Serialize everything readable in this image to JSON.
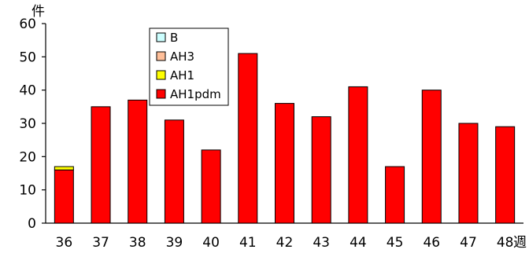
{
  "chart_data": {
    "type": "bar",
    "stacked": true,
    "title": "",
    "xlabel": "",
    "ylabel": "",
    "y_unit": "件",
    "x_unit": "週",
    "categories": [
      "36",
      "37",
      "38",
      "39",
      "40",
      "41",
      "42",
      "43",
      "44",
      "45",
      "46",
      "47",
      "48"
    ],
    "ylim": [
      0,
      60
    ],
    "yticks": [
      0,
      10,
      20,
      30,
      40,
      50,
      60
    ],
    "grid": false,
    "legend_position": "top-center",
    "series": [
      {
        "name": "AH1pdm",
        "color": "#ff0000",
        "values": [
          16,
          35,
          37,
          31,
          22,
          51,
          36,
          32,
          41,
          17,
          40,
          30,
          29
        ]
      },
      {
        "name": "AH1",
        "color": "#ffff00",
        "values": [
          1,
          0,
          0,
          0,
          0,
          0,
          0,
          0,
          0,
          0,
          0,
          0,
          0
        ]
      },
      {
        "name": "AH3",
        "color": "#ffbf99",
        "values": [
          0,
          0,
          0,
          0,
          0,
          0,
          0,
          0,
          0,
          0,
          0,
          0,
          0
        ]
      },
      {
        "name": "B",
        "color": "#ccffff",
        "values": [
          0,
          0,
          0,
          0,
          0,
          0,
          0,
          0,
          0,
          0,
          0,
          0,
          0
        ]
      }
    ],
    "legend_order": [
      "B",
      "AH3",
      "AH1",
      "AH1pdm"
    ]
  }
}
